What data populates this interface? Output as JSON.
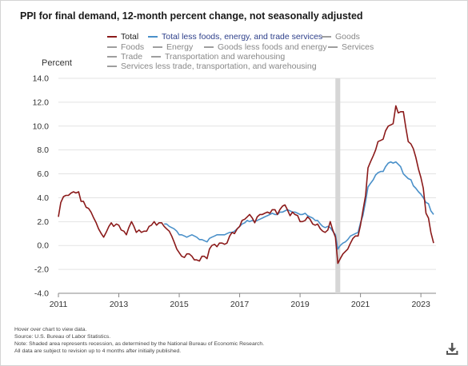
{
  "title": "PPI for final demand, 12-month percent change, not seasonally adjusted",
  "legend": [
    {
      "label": "Total",
      "color": "#8b1a1a",
      "active": true
    },
    {
      "label": "Total less foods, energy, and trade services",
      "color": "#4a90c9",
      "active": true
    },
    {
      "label": "Goods",
      "color": "#9e9e9e",
      "active": false
    },
    {
      "label": "Foods",
      "color": "#9e9e9e",
      "active": false
    },
    {
      "label": "Energy",
      "color": "#9e9e9e",
      "active": false
    },
    {
      "label": "Goods less foods and energy",
      "color": "#9e9e9e",
      "active": false
    },
    {
      "label": "Services",
      "color": "#9e9e9e",
      "active": false
    },
    {
      "label": "Trade",
      "color": "#9e9e9e",
      "active": false
    },
    {
      "label": "Transportation and warehousing",
      "color": "#9e9e9e",
      "active": false
    },
    {
      "label": "Services less trade, transportation, and warehousing",
      "color": "#9e9e9e",
      "active": false
    }
  ],
  "notes": [
    "Hover over chart to view data.",
    "Source: U.S. Bureau of Labor Statistics.",
    "Note: Shaded area represents recession, as determined by the National Bureau of Economic Research.",
    "All data are subject to revision up to 4 months after initially published."
  ],
  "download_icon": "download-icon",
  "chart_data": {
    "type": "line",
    "title": "PPI for final demand, 12-month percent change, not seasonally adjusted",
    "ylabel": "Percent",
    "xlabel": "",
    "ylim": [
      -4.0,
      14.0
    ],
    "yticks": [
      -4.0,
      -2.0,
      0.0,
      2.0,
      4.0,
      6.0,
      8.0,
      10.0,
      12.0,
      14.0
    ],
    "ytick_labels": [
      "-4.0",
      "-2.0",
      "0.0",
      "2.0",
      "4.0",
      "6.0",
      "8.0",
      "10.0",
      "12.0",
      "14.0"
    ],
    "xlim": [
      2011.0,
      2023.5
    ],
    "xticks": [
      "2011",
      "2013",
      "2015",
      "2017",
      "2019",
      "2021",
      "2023"
    ],
    "grid": "horizontal",
    "recession": [
      2020.17,
      2020.33
    ],
    "series": [
      {
        "name": "Total",
        "color": "#8b1a1a",
        "x": [
          2011.0,
          2011.08,
          2011.17,
          2011.25,
          2011.33,
          2011.42,
          2011.5,
          2011.58,
          2011.67,
          2011.75,
          2011.83,
          2011.92,
          2012.0,
          2012.08,
          2012.17,
          2012.25,
          2012.33,
          2012.42,
          2012.5,
          2012.58,
          2012.67,
          2012.75,
          2012.83,
          2012.92,
          2013.0,
          2013.08,
          2013.17,
          2013.25,
          2013.33,
          2013.42,
          2013.5,
          2013.58,
          2013.67,
          2013.75,
          2013.83,
          2013.92,
          2014.0,
          2014.08,
          2014.17,
          2014.25,
          2014.33,
          2014.42,
          2014.5,
          2014.58,
          2014.67,
          2014.75,
          2014.83,
          2014.92,
          2015.0,
          2015.08,
          2015.17,
          2015.25,
          2015.33,
          2015.42,
          2015.5,
          2015.58,
          2015.67,
          2015.75,
          2015.83,
          2015.92,
          2016.0,
          2016.08,
          2016.17,
          2016.25,
          2016.33,
          2016.42,
          2016.5,
          2016.58,
          2016.67,
          2016.75,
          2016.83,
          2016.92,
          2017.0,
          2017.08,
          2017.17,
          2017.25,
          2017.33,
          2017.42,
          2017.5,
          2017.58,
          2017.67,
          2017.75,
          2017.83,
          2017.92,
          2018.0,
          2018.08,
          2018.17,
          2018.25,
          2018.33,
          2018.42,
          2018.5,
          2018.58,
          2018.67,
          2018.75,
          2018.83,
          2018.92,
          2019.0,
          2019.08,
          2019.17,
          2019.25,
          2019.33,
          2019.42,
          2019.5,
          2019.58,
          2019.67,
          2019.75,
          2019.83,
          2019.92,
          2020.0,
          2020.08,
          2020.17,
          2020.25,
          2020.33,
          2020.42,
          2020.5,
          2020.58,
          2020.67,
          2020.75,
          2020.83,
          2020.92,
          2021.0,
          2021.08,
          2021.17,
          2021.25,
          2021.33,
          2021.42,
          2021.5,
          2021.58,
          2021.67,
          2021.75,
          2021.83,
          2021.92,
          2022.0,
          2022.08,
          2022.17,
          2022.25,
          2022.33,
          2022.42,
          2022.5,
          2022.58,
          2022.67,
          2022.75,
          2022.83,
          2022.92,
          2023.0,
          2023.08,
          2023.17,
          2023.25,
          2023.33,
          2023.42
        ],
        "values": [
          2.4,
          3.6,
          4.1,
          4.2,
          4.2,
          4.4,
          4.5,
          4.4,
          4.5,
          3.7,
          3.7,
          3.2,
          3.1,
          2.8,
          2.3,
          1.9,
          1.4,
          1.0,
          0.7,
          1.1,
          1.6,
          1.9,
          1.6,
          1.8,
          1.7,
          1.3,
          1.2,
          0.9,
          1.5,
          2.0,
          1.6,
          1.1,
          1.3,
          1.1,
          1.2,
          1.2,
          1.6,
          1.7,
          2.0,
          1.7,
          1.9,
          1.9,
          1.6,
          1.4,
          1.2,
          0.8,
          0.3,
          -0.3,
          -0.6,
          -0.9,
          -1.0,
          -0.7,
          -0.7,
          -0.9,
          -1.2,
          -1.2,
          -1.3,
          -0.9,
          -0.9,
          -1.1,
          -0.3,
          0.0,
          0.1,
          -0.1,
          0.2,
          0.2,
          0.1,
          0.2,
          0.8,
          1.1,
          1.0,
          1.4,
          1.6,
          2.1,
          2.2,
          2.4,
          2.6,
          2.3,
          1.9,
          2.4,
          2.6,
          2.6,
          2.7,
          2.8,
          2.7,
          3.0,
          3.0,
          2.6,
          3.0,
          3.3,
          3.4,
          3.0,
          2.5,
          2.8,
          2.6,
          2.5,
          2.0,
          2.0,
          2.1,
          2.4,
          2.2,
          1.8,
          1.7,
          1.8,
          1.4,
          1.2,
          1.1,
          1.3,
          2.0,
          1.3,
          0.7,
          -1.5,
          -1.1,
          -0.7,
          -0.5,
          -0.3,
          0.2,
          0.6,
          0.8,
          0.8,
          1.7,
          2.9,
          4.2,
          6.5,
          7.0,
          7.5,
          8.0,
          8.7,
          8.8,
          8.9,
          9.6,
          10.0,
          10.1,
          10.2,
          11.7,
          11.1,
          11.2,
          11.2,
          9.9,
          8.7,
          8.5,
          8.1,
          7.4,
          6.4,
          5.7,
          4.8,
          2.7,
          2.3,
          1.1,
          0.2
        ]
      },
      {
        "name": "Total less foods, energy, and trade services",
        "color": "#4a90c9",
        "x": [
          2014.5,
          2014.58,
          2014.67,
          2014.75,
          2014.83,
          2014.92,
          2015.0,
          2015.08,
          2015.17,
          2015.25,
          2015.33,
          2015.42,
          2015.5,
          2015.58,
          2015.67,
          2015.75,
          2015.83,
          2015.92,
          2016.0,
          2016.08,
          2016.17,
          2016.25,
          2016.33,
          2016.42,
          2016.5,
          2016.58,
          2016.67,
          2016.75,
          2016.83,
          2016.92,
          2017.0,
          2017.08,
          2017.17,
          2017.25,
          2017.33,
          2017.42,
          2017.5,
          2017.58,
          2017.67,
          2017.75,
          2017.83,
          2017.92,
          2018.0,
          2018.08,
          2018.17,
          2018.25,
          2018.33,
          2018.42,
          2018.5,
          2018.58,
          2018.67,
          2018.75,
          2018.83,
          2018.92,
          2019.0,
          2019.08,
          2019.17,
          2019.25,
          2019.33,
          2019.42,
          2019.5,
          2019.58,
          2019.67,
          2019.75,
          2019.83,
          2019.92,
          2020.0,
          2020.08,
          2020.17,
          2020.25,
          2020.33,
          2020.42,
          2020.5,
          2020.58,
          2020.67,
          2020.75,
          2020.83,
          2020.92,
          2021.0,
          2021.08,
          2021.17,
          2021.25,
          2021.33,
          2021.42,
          2021.5,
          2021.58,
          2021.67,
          2021.75,
          2021.83,
          2021.92,
          2022.0,
          2022.08,
          2022.17,
          2022.25,
          2022.33,
          2022.42,
          2022.5,
          2022.58,
          2022.67,
          2022.75,
          2022.83,
          2022.92,
          2023.0,
          2023.08,
          2023.17,
          2023.25,
          2023.33,
          2023.42
        ],
        "values": [
          1.8,
          1.8,
          1.6,
          1.5,
          1.4,
          1.2,
          0.9,
          0.9,
          0.8,
          0.7,
          0.8,
          0.9,
          0.8,
          0.7,
          0.5,
          0.5,
          0.4,
          0.3,
          0.6,
          0.7,
          0.8,
          0.9,
          0.9,
          0.9,
          0.9,
          1.0,
          1.1,
          1.1,
          1.2,
          1.4,
          1.6,
          1.8,
          1.9,
          2.1,
          2.0,
          2.1,
          2.0,
          2.1,
          2.2,
          2.3,
          2.4,
          2.5,
          2.6,
          2.7,
          2.6,
          2.6,
          2.8,
          2.8,
          2.9,
          3.0,
          2.9,
          2.8,
          2.8,
          2.7,
          2.6,
          2.6,
          2.7,
          2.5,
          2.4,
          2.3,
          2.1,
          2.1,
          1.8,
          1.6,
          1.5,
          1.6,
          1.5,
          1.2,
          0.9,
          -0.3,
          0.0,
          0.2,
          0.3,
          0.5,
          0.8,
          0.9,
          1.0,
          1.1,
          1.9,
          2.5,
          3.7,
          4.9,
          5.2,
          5.5,
          5.9,
          6.1,
          6.2,
          6.2,
          6.6,
          6.9,
          7.0,
          6.9,
          7.0,
          6.8,
          6.6,
          6.0,
          5.8,
          5.6,
          5.5,
          5.0,
          4.8,
          4.5,
          4.3,
          4.0,
          3.6,
          3.5,
          2.9,
          2.6
        ]
      }
    ]
  }
}
